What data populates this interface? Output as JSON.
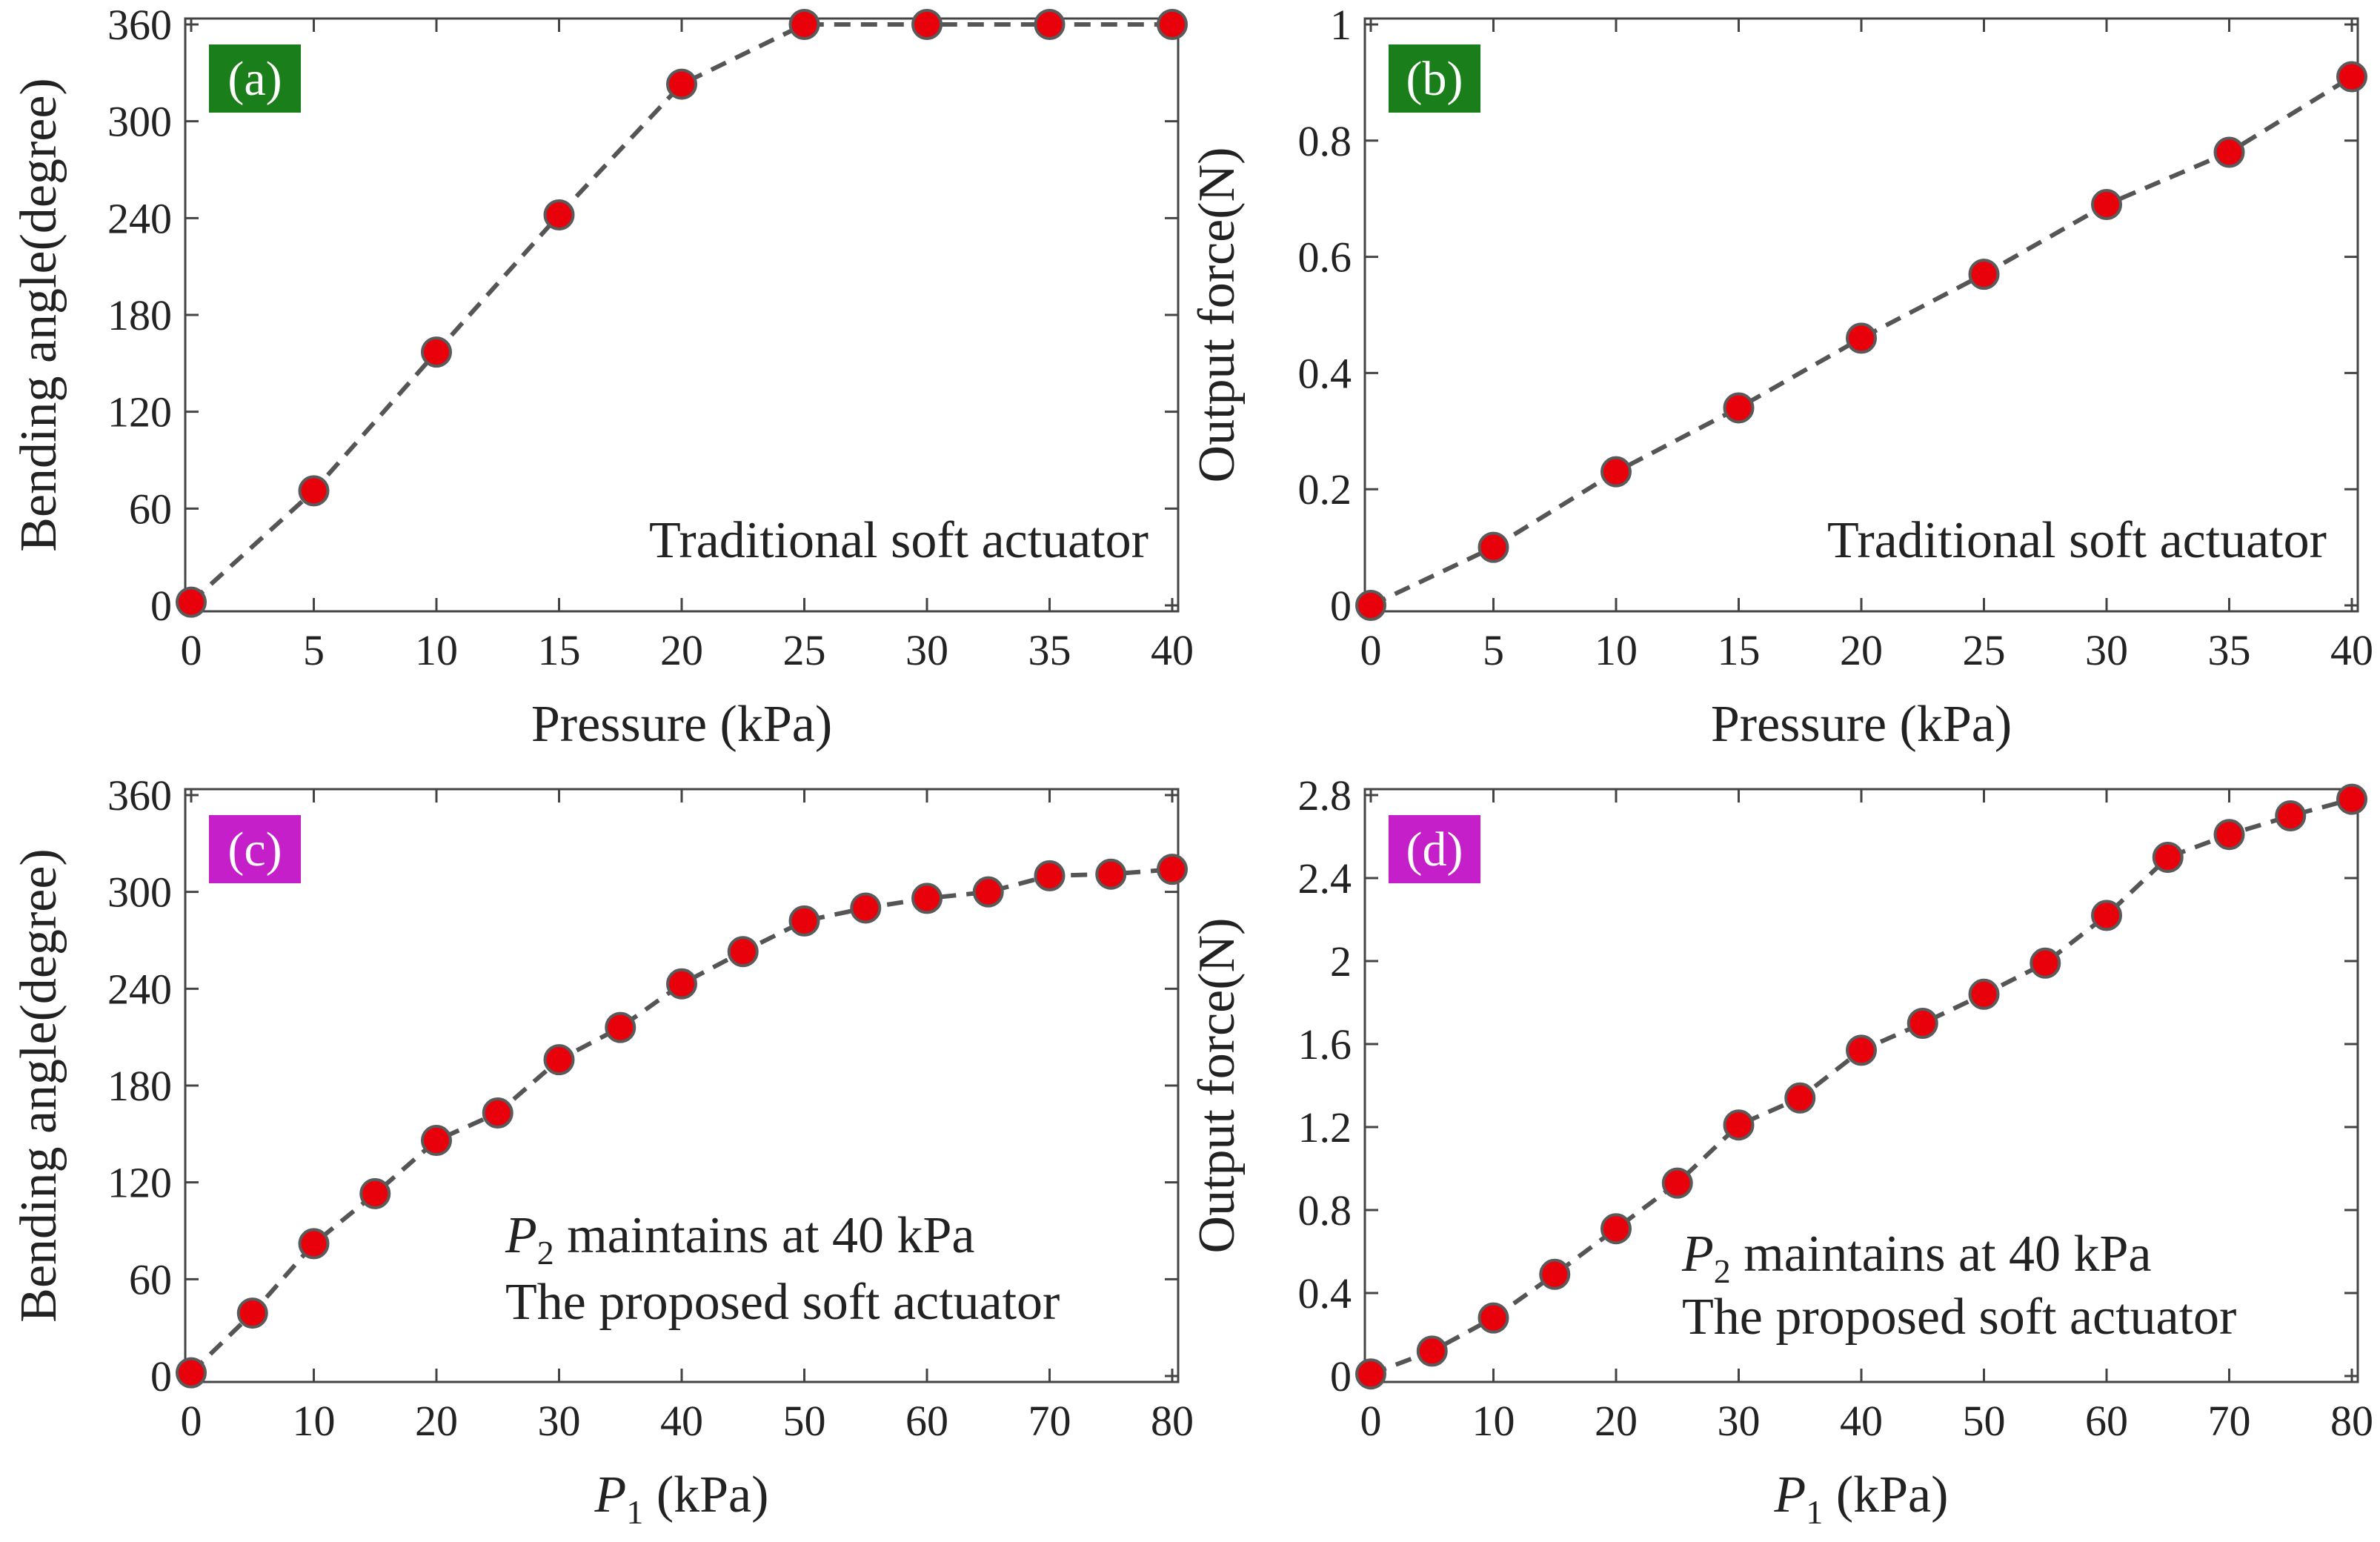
{
  "colors": {
    "marker_fill": "#e8000b",
    "marker_edge": "#5a5a5a",
    "line": "#555555",
    "axis": "#444444",
    "text": "#222222",
    "label_green": "#1a7f1a",
    "label_magenta": "#c41fc9"
  },
  "chart_data": [
    {
      "id": "a",
      "type": "line",
      "panel_label": "(a)",
      "panel_label_color": "#1a7f1a",
      "xlabel": "Pressure (kPa)",
      "ylabel": "Bending angle(degree)",
      "note": [
        "Traditional soft actuator"
      ],
      "xlim": [
        0,
        40
      ],
      "ylim": [
        0,
        360
      ],
      "xticks": [
        0,
        5,
        10,
        15,
        20,
        25,
        30,
        35,
        40
      ],
      "yticks": [
        0,
        60,
        120,
        180,
        240,
        300,
        360
      ],
      "ytick_labels": [
        "0",
        "60",
        "120",
        "180",
        "240",
        "300",
        "360"
      ],
      "x": [
        0,
        5,
        10,
        15,
        20,
        25,
        30,
        35,
        40
      ],
      "y": [
        2,
        71,
        157,
        242,
        323,
        360,
        360,
        360,
        360
      ]
    },
    {
      "id": "b",
      "type": "line",
      "panel_label": "(b)",
      "panel_label_color": "#1a7f1a",
      "xlabel": "Pressure (kPa)",
      "ylabel": "Output force(N)",
      "note": [
        "Traditional soft actuator"
      ],
      "xlim": [
        0,
        40
      ],
      "ylim": [
        0,
        1
      ],
      "xticks": [
        0,
        5,
        10,
        15,
        20,
        25,
        30,
        35,
        40
      ],
      "yticks": [
        0,
        0.2,
        0.4,
        0.6,
        0.8,
        1
      ],
      "ytick_labels": [
        "0",
        "0.2",
        "0.4",
        "0.6",
        "0.8",
        "1"
      ],
      "x": [
        0,
        5,
        10,
        15,
        20,
        25,
        30,
        35,
        40
      ],
      "y": [
        0.0,
        0.1,
        0.23,
        0.34,
        0.46,
        0.57,
        0.69,
        0.78,
        0.91
      ]
    },
    {
      "id": "c",
      "type": "line",
      "panel_label": "(c)",
      "panel_label_color": "#c41fc9",
      "xlabel": "P1 (kPa)",
      "xlabel_main": "P",
      "xlabel_sub": "1",
      "xlabel_rest": " (kPa)",
      "ylabel": "Bending angle(degree)",
      "note": [
        "P2 maintains at 40 kPa",
        "The proposed soft actuator"
      ],
      "note_main": "P",
      "note_sub": "2",
      "note_rest": " maintains at 40 kPa",
      "note_line2": "The proposed soft actuator",
      "xlim": [
        0,
        80
      ],
      "ylim": [
        0,
        360
      ],
      "xticks": [
        0,
        10,
        20,
        30,
        40,
        50,
        60,
        70,
        80
      ],
      "yticks": [
        0,
        60,
        120,
        180,
        240,
        300,
        360
      ],
      "ytick_labels": [
        "0",
        "60",
        "120",
        "180",
        "240",
        "300",
        "360"
      ],
      "x": [
        0,
        5,
        10,
        15,
        20,
        25,
        30,
        35,
        40,
        45,
        50,
        55,
        60,
        65,
        70,
        75,
        80
      ],
      "y": [
        2,
        39,
        82,
        113,
        146,
        163,
        196,
        216,
        243,
        263,
        282,
        290,
        296,
        300,
        310,
        311,
        314
      ]
    },
    {
      "id": "d",
      "type": "line",
      "panel_label": "(d)",
      "panel_label_color": "#c41fc9",
      "xlabel": "P1 (kPa)",
      "xlabel_main": "P",
      "xlabel_sub": "1",
      "xlabel_rest": " (kPa)",
      "ylabel": "Output force(N)",
      "note": [
        "P2 maintains at 40 kPa",
        "The proposed soft actuator"
      ],
      "note_main": "P",
      "note_sub": "2",
      "note_rest": " maintains at 40 kPa",
      "note_line2": "The proposed soft actuator",
      "xlim": [
        0,
        80
      ],
      "ylim": [
        0,
        2.8
      ],
      "xticks": [
        0,
        10,
        20,
        30,
        40,
        50,
        60,
        70,
        80
      ],
      "yticks": [
        0,
        0.4,
        0.8,
        1.2,
        1.6,
        2,
        2.4,
        2.8
      ],
      "ytick_labels": [
        "0",
        "0.4",
        "0.8",
        "1.2",
        "1.6",
        "2",
        "2.4",
        "2.8"
      ],
      "x": [
        0,
        5,
        10,
        15,
        20,
        25,
        30,
        35,
        40,
        45,
        50,
        55,
        60,
        65,
        70,
        75,
        80
      ],
      "y": [
        0.01,
        0.12,
        0.28,
        0.49,
        0.71,
        0.93,
        1.21,
        1.34,
        1.57,
        1.7,
        1.84,
        1.99,
        2.22,
        2.5,
        2.61,
        2.7,
        2.78
      ]
    }
  ]
}
